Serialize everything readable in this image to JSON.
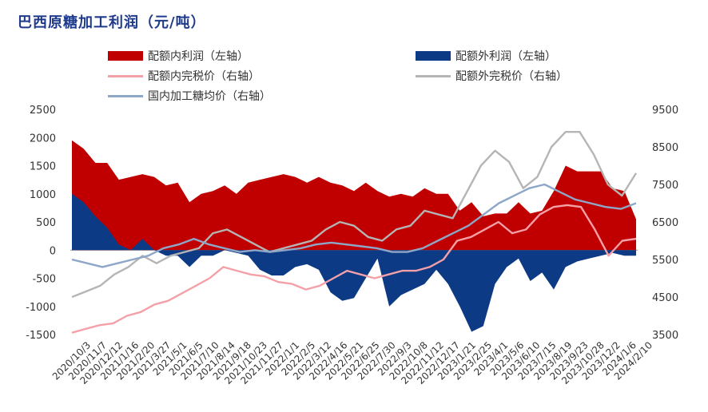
{
  "title": "巴西原糖加工利润（元/吨）",
  "chart_data": {
    "type": "area",
    "title": "巴西原糖加工利润（元/吨）",
    "left_axis": {
      "min": -1500,
      "max": 2500,
      "ticks": [
        2500,
        2000,
        1500,
        1000,
        500,
        0,
        -500,
        -1000,
        -1500
      ]
    },
    "right_axis": {
      "min": 3500,
      "max": 9500,
      "ticks": [
        9500,
        8500,
        7500,
        6500,
        5500,
        4500,
        3500
      ]
    },
    "x_ticks": [
      "2020/10/3",
      "2020/11/7",
      "2020/12/12",
      "2021/1/16",
      "2021/2/20",
      "2021/3/27",
      "2021/5/1",
      "2021/6/5",
      "2021/7/10",
      "2021/8/14",
      "2021/9/18",
      "2021/10/23",
      "2021/11/27",
      "2022/1/1",
      "2022/2/5",
      "2022/3/12",
      "2022/4/16",
      "2022/5/21",
      "2022/6/25",
      "2022/7/30",
      "2022/9/3",
      "2022/10/8",
      "2022/11/12",
      "2022/12/17",
      "2023/1/21",
      "2023/2/25",
      "2023/4/1",
      "2023/5/6",
      "2023/6/10",
      "2023/7/15",
      "2023/8/19",
      "2023/9/23",
      "2023/10/28",
      "2023/12/2",
      "2024/1/6",
      "2024/2/10"
    ],
    "legend": [
      {
        "name": "配额内利润（左轴）",
        "color": "#c00000",
        "kind": "area"
      },
      {
        "name": "配额外利润（左轴）",
        "color": "#0d3a85",
        "kind": "area"
      },
      {
        "name": "配额内完税价（右轴）",
        "color": "#f4a0a8",
        "kind": "line"
      },
      {
        "name": "配额外完税价（右轴）",
        "color": "#b5b5b5",
        "kind": "line"
      },
      {
        "name": "国内加工糖均价（右轴）",
        "color": "#8ea6c8",
        "kind": "line"
      }
    ],
    "series": [
      {
        "name": "配额内利润（左轴）",
        "axis": "left",
        "values": [
          1950,
          1800,
          1550,
          1550,
          1250,
          1300,
          1350,
          1300,
          1150,
          1200,
          850,
          1000,
          1050,
          1150,
          1000,
          1200,
          1250,
          1300,
          1350,
          1300,
          1200,
          1300,
          1200,
          1150,
          1050,
          1200,
          1050,
          950,
          1000,
          950,
          1100,
          1000,
          1000,
          700,
          850,
          600,
          650,
          650,
          850,
          650,
          700,
          1050,
          1500,
          1400,
          1400,
          1400,
          1100,
          1050,
          550
        ]
      },
      {
        "name": "配额外利润（左轴）",
        "axis": "left",
        "values": [
          1000,
          850,
          600,
          400,
          100,
          0,
          200,
          0,
          -100,
          -100,
          -300,
          -100,
          -100,
          0,
          -50,
          -100,
          -350,
          -450,
          -450,
          -300,
          -250,
          -350,
          -750,
          -900,
          -850,
          -500,
          -150,
          -1000,
          -800,
          -700,
          -600,
          -350,
          -600,
          -1000,
          -1450,
          -1350,
          -600,
          -300,
          -150,
          -550,
          -400,
          -700,
          -300,
          -200,
          -150,
          -100,
          -50,
          -100,
          -100
        ]
      },
      {
        "name": "配额内完税价（右轴）",
        "axis": "right",
        "values": [
          3550,
          3650,
          3750,
          3800,
          4000,
          4100,
          4300,
          4400,
          4600,
          4800,
          5000,
          5300,
          5200,
          5100,
          5050,
          4900,
          4850,
          4700,
          4800,
          5000,
          5200,
          5100,
          5000,
          5100,
          5200,
          5200,
          5300,
          5500,
          6000,
          6100,
          6300,
          6500,
          6200,
          6300,
          6700,
          6900,
          6950,
          6900,
          6300,
          5600,
          6000,
          6050
        ]
      },
      {
        "name": "配额外完税价（右轴）",
        "axis": "right",
        "values": [
          4500,
          4650,
          4800,
          5100,
          5300,
          5600,
          5400,
          5600,
          5700,
          5800,
          6200,
          6300,
          6100,
          5900,
          5700,
          5800,
          5900,
          6000,
          6300,
          6500,
          6400,
          6100,
          6000,
          6300,
          6400,
          6800,
          6700,
          6600,
          7300,
          8000,
          8400,
          8100,
          7400,
          7700,
          8500,
          8900,
          8900,
          8300,
          7500,
          7200,
          7800
        ]
      },
      {
        "name": "国内加工糖均价（右轴）",
        "axis": "right",
        "values": [
          5500,
          5400,
          5300,
          5400,
          5500,
          5600,
          5800,
          5900,
          6050,
          5900,
          5800,
          5700,
          5750,
          5700,
          5750,
          5800,
          5900,
          5950,
          5900,
          5850,
          5800,
          5700,
          5700,
          5800,
          6000,
          6200,
          6400,
          6700,
          7000,
          7200,
          7400,
          7500,
          7300,
          7100,
          7000,
          6900,
          6850,
          7000
        ]
      }
    ]
  }
}
